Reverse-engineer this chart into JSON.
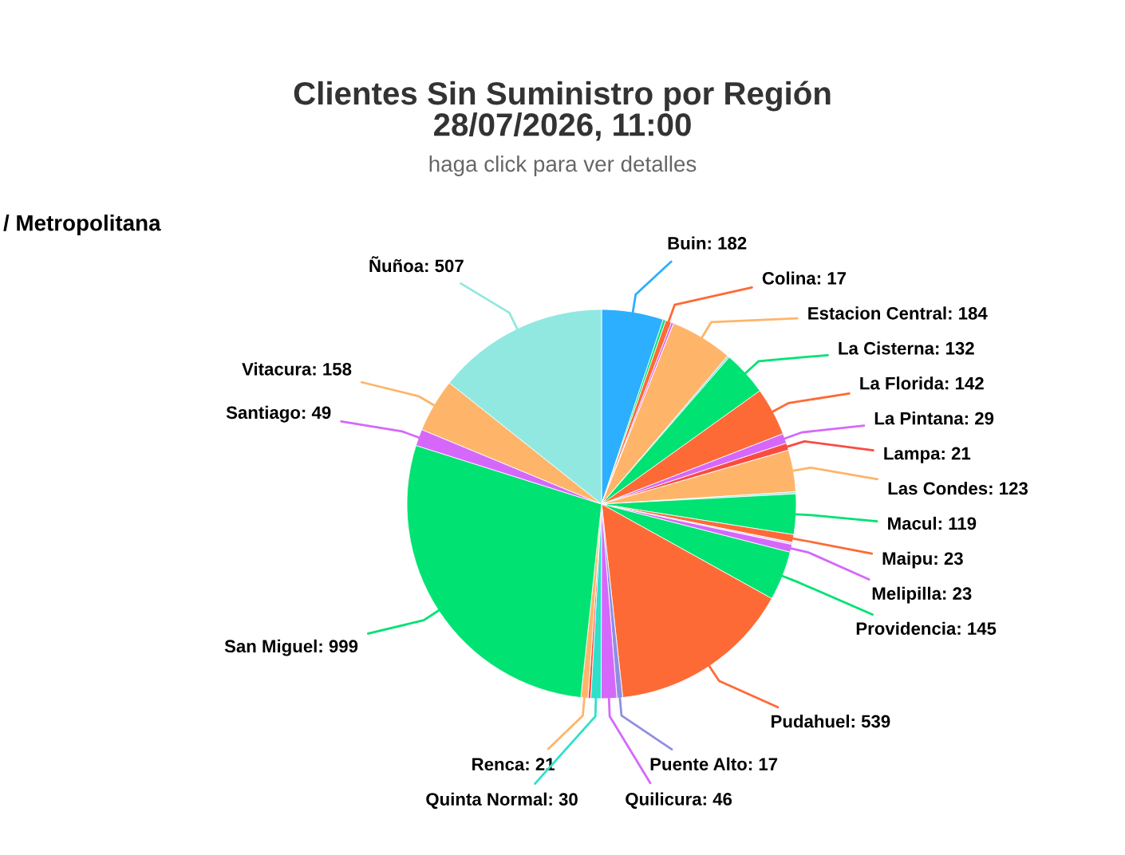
{
  "chart_data": {
    "type": "pie",
    "title": "Clientes Sin Suministro por Región\n28/07/2026, 11:00",
    "subtitle": "haga click para ver detalles",
    "annotations": [
      "/ Metropolitana"
    ],
    "categories": [
      "Buin",
      null,
      "Colina",
      null,
      "Estacion Central",
      null,
      "La Cisterna",
      "La Florida",
      "La Pintana",
      "Lampa",
      "Las Condes",
      null,
      "Macul",
      "Maipu",
      null,
      "Melipilla",
      "Providencia",
      "Pudahuel",
      "Puente Alto",
      "Quilicura",
      "Quinta Normal",
      null,
      "Renca",
      "San Miguel",
      "Santiago",
      "Vitacura",
      "Ñuñoa"
    ],
    "values": [
      182,
      8,
      17,
      7,
      184,
      6,
      132,
      142,
      29,
      21,
      123,
      6,
      119,
      23,
      6,
      23,
      145,
      539,
      17,
      46,
      30,
      8,
      21,
      999,
      49,
      158,
      507
    ],
    "colors": [
      "#2caffe",
      "#00e272",
      "#fe6a35",
      "#d568fb",
      "#feb56a",
      "#91e8e1",
      "#00e272",
      "#fe6a35",
      "#d568fb",
      "#fa4b42",
      "#feb56a",
      "#91e8e1",
      "#00e272",
      "#fe6a35",
      "#e8c8f5",
      "#d568fb",
      "#00e272",
      "#fe6a35",
      "#8f8fe0",
      "#d568fb",
      "#2ee0ca",
      "#fa4b42",
      "#feb56a",
      "#00e272",
      "#d568fb",
      "#feb56a",
      "#91e8e1"
    ],
    "value_labels": [
      "182",
      null,
      "17",
      null,
      "184",
      null,
      "132",
      "142",
      "29",
      "21",
      "123",
      null,
      "119",
      "23",
      null,
      "23",
      "145",
      "539",
      "17",
      "46",
      "30",
      null,
      "21",
      "999",
      "49",
      "158",
      "507"
    ],
    "legend": false
  }
}
